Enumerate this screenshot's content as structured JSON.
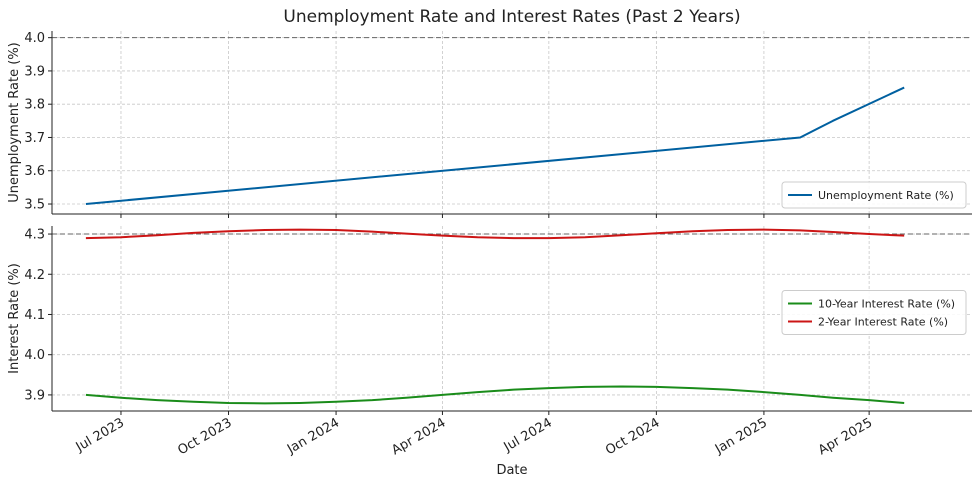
{
  "chart_data": {
    "type": "line",
    "title": "Unemployment Rate and Interest Rates (Past 2 Years)",
    "xlabel": "Date",
    "x_ticks": [
      {
        "date": "2023-07-01",
        "label": "Jul 2023"
      },
      {
        "date": "2023-10-01",
        "label": "Oct 2023"
      },
      {
        "date": "2024-01-01",
        "label": "Jan 2024"
      },
      {
        "date": "2024-04-01",
        "label": "Apr 2024"
      },
      {
        "date": "2024-07-01",
        "label": "Jul 2024"
      },
      {
        "date": "2024-10-01",
        "label": "Oct 2024"
      },
      {
        "date": "2025-01-01",
        "label": "Jan 2025"
      },
      {
        "date": "2025-04-01",
        "label": "Apr 2025"
      }
    ],
    "xlim": [
      "2023-05-03",
      "2025-06-28"
    ],
    "panels": [
      {
        "ylabel": "Unemployment Rate (%)",
        "ylim": [
          3.47,
          4.02
        ],
        "yticks": [
          "3.5",
          "3.6",
          "3.7",
          "3.8",
          "3.9",
          "4.0"
        ],
        "reference_line": 4.0,
        "grid": true,
        "legend_position": "lower-right",
        "series": [
          {
            "name": "Unemployment Rate (%)",
            "color": "#0060a0",
            "x": [
              "2023-06-01",
              "2025-02-01",
              "2025-03-01",
              "2025-05-01"
            ],
            "y": [
              3.5,
              3.7,
              3.75,
              3.85
            ]
          }
        ]
      },
      {
        "ylabel": "Interest Rate (%)",
        "ylim": [
          3.86,
          4.32
        ],
        "yticks": [
          "3.9",
          "4.0",
          "4.1",
          "4.2",
          "4.3"
        ],
        "reference_line": 4.3,
        "grid": true,
        "legend_position": "center-right",
        "series": [
          {
            "name": "10-Year Interest Rate (%)",
            "color": "#1a8c1a",
            "x": [
              "2023-06-01",
              "2023-07-01",
              "2023-08-01",
              "2023-09-01",
              "2023-10-01",
              "2023-11-01",
              "2023-12-01",
              "2024-01-01",
              "2024-02-01",
              "2024-03-01",
              "2024-04-01",
              "2024-05-01",
              "2024-06-01",
              "2024-07-01",
              "2024-08-01",
              "2024-09-01",
              "2024-10-01",
              "2024-11-01",
              "2024-12-01",
              "2025-01-01",
              "2025-02-01",
              "2025-03-01",
              "2025-04-01",
              "2025-05-01"
            ],
            "y": [
              3.9,
              3.893,
              3.887,
              3.883,
              3.88,
              3.879,
              3.88,
              3.883,
              3.887,
              3.893,
              3.9,
              3.907,
              3.913,
              3.917,
              3.92,
              3.921,
              3.92,
              3.917,
              3.913,
              3.907,
              3.9,
              3.893,
              3.887,
              3.88
            ]
          },
          {
            "name": "2-Year Interest Rate (%)",
            "color": "#cc1515",
            "x": [
              "2023-06-01",
              "2023-07-01",
              "2023-08-01",
              "2023-09-01",
              "2023-10-01",
              "2023-11-01",
              "2023-12-01",
              "2024-01-01",
              "2024-02-01",
              "2024-03-01",
              "2024-04-01",
              "2024-05-01",
              "2024-06-01",
              "2024-07-01",
              "2024-08-01",
              "2024-09-01",
              "2024-10-01",
              "2024-11-01",
              "2024-12-01",
              "2025-01-01",
              "2025-02-01",
              "2025-03-01",
              "2025-04-01",
              "2025-05-01"
            ],
            "y": [
              4.29,
              4.292,
              4.297,
              4.303,
              4.307,
              4.31,
              4.311,
              4.31,
              4.306,
              4.301,
              4.296,
              4.292,
              4.29,
              4.29,
              4.292,
              4.297,
              4.302,
              4.307,
              4.31,
              4.311,
              4.309,
              4.305,
              4.3,
              4.296
            ]
          }
        ]
      }
    ]
  }
}
